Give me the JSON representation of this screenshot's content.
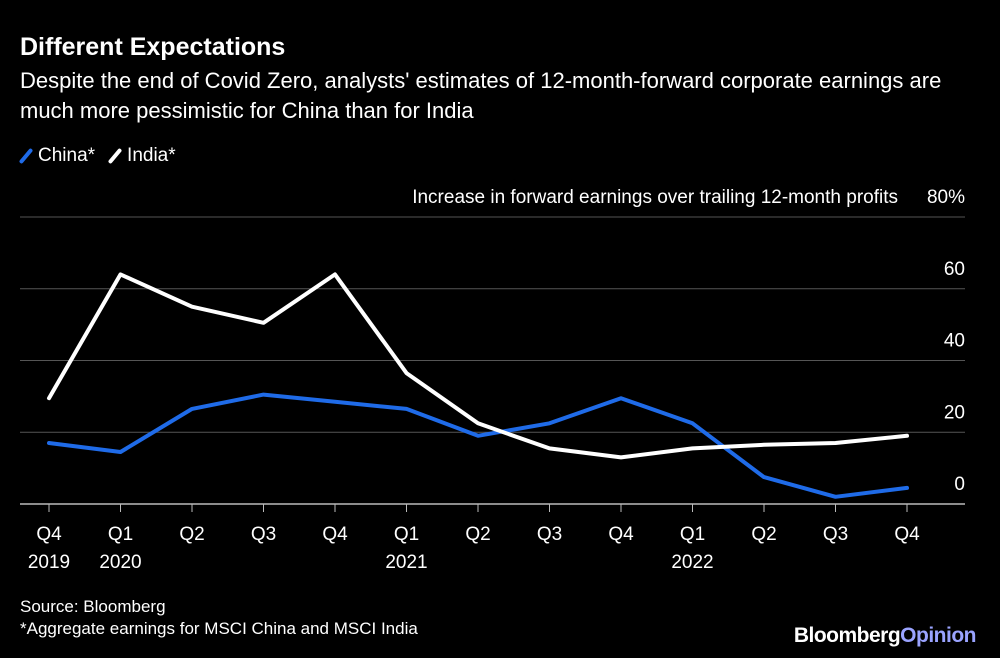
{
  "header": {
    "title": "Different Expectations",
    "subtitle": "Despite the end of Covid Zero, analysts' estimates of 12-month-forward corporate earnings are much more pessimistic for China than for India"
  },
  "footer": {
    "source": "Source: Bloomberg",
    "note": "*Aggregate earnings for MSCI China and MSCI India",
    "brand_main": "Bloomberg",
    "brand_accent": "Opinion"
  },
  "colors": {
    "background": "#000000",
    "china": "#1f6be8",
    "india": "#ffffff",
    "grid": "#555555",
    "brand_accent": "#9aa3ff"
  },
  "chart_data": {
    "type": "line",
    "ylabel": "Increase in forward earnings over trailing 12-month profits",
    "ylim": [
      0,
      80
    ],
    "yticks": [
      0,
      20,
      40,
      60,
      80
    ],
    "ytick_labels": [
      "0",
      "20",
      "40",
      "60",
      "80%"
    ],
    "grid": true,
    "legend_position": "top-left",
    "x": [
      "Q4 2019",
      "Q1 2020",
      "Q2 2020",
      "Q3 2020",
      "Q4 2020",
      "Q1 2021",
      "Q2 2021",
      "Q3 2021",
      "Q4 2021",
      "Q1 2022",
      "Q2 2022",
      "Q3 2022",
      "Q4 2022"
    ],
    "x_tick_labels": [
      {
        "q": "Q4",
        "year": "2019"
      },
      {
        "q": "Q1",
        "year": "2020"
      },
      {
        "q": "Q2",
        "year": ""
      },
      {
        "q": "Q3",
        "year": ""
      },
      {
        "q": "Q4",
        "year": ""
      },
      {
        "q": "Q1",
        "year": "2021"
      },
      {
        "q": "Q2",
        "year": ""
      },
      {
        "q": "Q3",
        "year": ""
      },
      {
        "q": "Q4",
        "year": ""
      },
      {
        "q": "Q1",
        "year": "2022"
      },
      {
        "q": "Q2",
        "year": ""
      },
      {
        "q": "Q3",
        "year": ""
      },
      {
        "q": "Q4",
        "year": ""
      }
    ],
    "series": [
      {
        "name": "China*",
        "color": "#1f6be8",
        "values": [
          17,
          14.5,
          26.5,
          30.5,
          28.5,
          26.5,
          19,
          22.5,
          29.5,
          22.5,
          7.5,
          2,
          4.5
        ]
      },
      {
        "name": "India*",
        "color": "#ffffff",
        "values": [
          29.5,
          64,
          55,
          50.5,
          64,
          36.5,
          22.5,
          15.5,
          13,
          15.5,
          16.5,
          17,
          19
        ]
      }
    ]
  }
}
